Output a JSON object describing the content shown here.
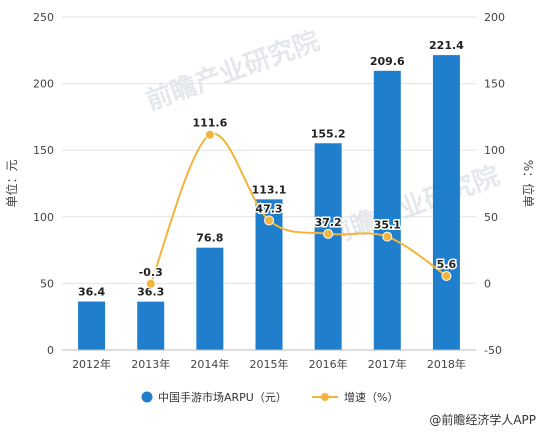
{
  "chart_data": {
    "type": "bar",
    "categories": [
      "2012年",
      "2013年",
      "2014年",
      "2015年",
      "2016年",
      "2017年",
      "2018年"
    ],
    "series": [
      {
        "name": "中国手游市场ARPU（元）",
        "kind": "bar",
        "axis": "left",
        "color": "#1f7fcd",
        "values": [
          36.4,
          36.3,
          76.8,
          113.1,
          155.2,
          209.6,
          221.4
        ]
      },
      {
        "name": "增速（%）",
        "kind": "line",
        "axis": "right",
        "color": "#f2b43c",
        "values": [
          null,
          -0.3,
          111.6,
          47.3,
          37.2,
          35.1,
          5.6
        ]
      }
    ],
    "ylabel": "单位：元",
    "y2label": "%：位单",
    "ylim": [
      0,
      250
    ],
    "yticks": [
      0,
      50,
      100,
      150,
      200,
      250
    ],
    "y2lim": [
      -50,
      200
    ],
    "y2ticks": [
      -50,
      0,
      50,
      100,
      150,
      200
    ],
    "grid": true,
    "legend": "bottom"
  },
  "watermark": "前瞻产业研究院",
  "source": "@前瞻经济学人APP"
}
